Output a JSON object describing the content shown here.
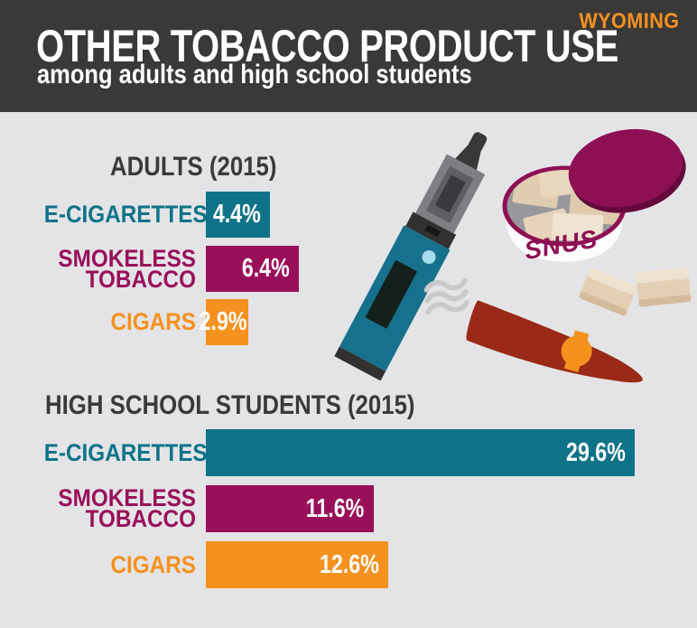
{
  "brand": {
    "label": "WYOMING",
    "color": "#f6921e"
  },
  "header": {
    "title": "OTHER TOBACCO PRODUCT USE",
    "subtitle": "among adults and high school students",
    "bg_color": "#3b3838",
    "text_color": "#ffffff"
  },
  "palette": {
    "teal": "#0e7389",
    "maroon": "#990f5a",
    "orange": "#f5911e",
    "heading_text": "#3d3939",
    "background": "#e4e4e6",
    "bar_value_text": "#ffffff"
  },
  "sections": {
    "adults": {
      "heading": "ADULTS (2015)",
      "rows": [
        {
          "label_lines": [
            "E-CIGARETTES"
          ],
          "value_label": "4.4%"
        },
        {
          "label_lines": [
            "SMOKELESS",
            "TOBACCO"
          ],
          "value_label": "6.4%"
        },
        {
          "label_lines": [
            "CIGARS"
          ],
          "value_label": "2.9%"
        }
      ]
    },
    "students": {
      "heading": "HIGH SCHOOL STUDENTS (2015)",
      "rows": [
        {
          "label_lines": [
            "E-CIGARETTES"
          ],
          "value_label": "29.6%"
        },
        {
          "label_lines": [
            "SMOKELESS",
            "TOBACCO"
          ],
          "value_label": "11.6%"
        },
        {
          "label_lines": [
            "CIGARS"
          ],
          "value_label": "12.6%"
        }
      ]
    }
  },
  "illustrations": {
    "snus_label": "SNUS",
    "items": [
      "e-cigarette",
      "snus-can",
      "cigar",
      "smoke"
    ]
  },
  "chart_data": [
    {
      "type": "bar",
      "orientation": "horizontal",
      "title": "ADULTS (2015)",
      "categories": [
        "E-CIGARETTES",
        "SMOKELESS TOBACCO",
        "CIGARS"
      ],
      "values": [
        4.4,
        6.4,
        2.9
      ],
      "unit": "%",
      "value_labels": [
        "4.4%",
        "6.4%",
        "2.9%"
      ],
      "bar_colors": [
        "#0e7389",
        "#990f5a",
        "#f5911e"
      ],
      "axis": "none",
      "value_label_position": "inside-right",
      "xlim": [
        0,
        31
      ]
    },
    {
      "type": "bar",
      "orientation": "horizontal",
      "title": "HIGH SCHOOL STUDENTS (2015)",
      "categories": [
        "E-CIGARETTES",
        "SMOKELESS TOBACCO",
        "CIGARS"
      ],
      "values": [
        29.6,
        11.6,
        12.6
      ],
      "unit": "%",
      "value_labels": [
        "29.6%",
        "11.6%",
        "12.6%"
      ],
      "bar_colors": [
        "#0e7389",
        "#990f5a",
        "#f5911e"
      ],
      "axis": "none",
      "value_label_position": "inside-right",
      "xlim": [
        0,
        31
      ]
    }
  ]
}
